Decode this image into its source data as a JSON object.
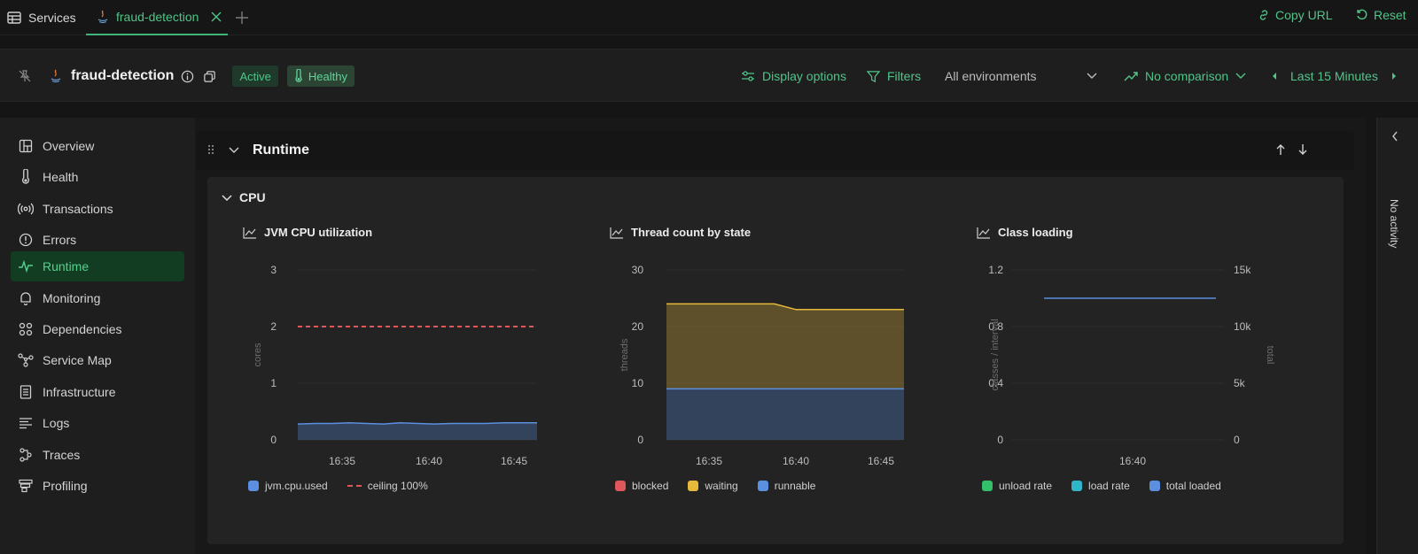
{
  "tabs": {
    "services_label": "Services",
    "active_tab_label": "fraud-detection",
    "add_icon": "plus-icon"
  },
  "top_actions": {
    "copy_url_label": "Copy URL",
    "reset_label": "Reset"
  },
  "header": {
    "service_name": "fraud-detection",
    "status_badge": "Active",
    "health_badge": "Healthy",
    "display_options_label": "Display options",
    "filters_label": "Filters",
    "environment_value": "All environments",
    "comparison_label": "No comparison",
    "time_range_label": "Last 15 Minutes"
  },
  "sidebar": {
    "items": [
      {
        "label": "Overview",
        "icon": "layout-icon"
      },
      {
        "label": "Health",
        "icon": "thermometer-icon"
      },
      {
        "label": "Transactions",
        "icon": "broadcast-icon"
      },
      {
        "label": "Errors",
        "icon": "alert-circle-icon"
      },
      {
        "label": "Runtime",
        "icon": "pulse-icon"
      },
      {
        "label": "Monitoring",
        "icon": "bell-icon"
      },
      {
        "label": "Dependencies",
        "icon": "circles-icon"
      },
      {
        "label": "Service Map",
        "icon": "graph-icon"
      },
      {
        "label": "Infrastructure",
        "icon": "server-icon"
      },
      {
        "label": "Logs",
        "icon": "lines-icon"
      },
      {
        "label": "Traces",
        "icon": "trace-icon"
      },
      {
        "label": "Profiling",
        "icon": "flame-table-icon"
      }
    ],
    "active_item": "Runtime"
  },
  "section": {
    "title": "Runtime",
    "subsection_title": "CPU"
  },
  "right_panel": {
    "label": "No activity"
  },
  "colors": {
    "accent": "#4fc588",
    "blue": "#5b8fe0",
    "red": "#e0575b",
    "yellow": "#e6b93a",
    "teal": "#2fb7c9",
    "green": "#34c06a"
  },
  "chart_data": [
    {
      "type": "area",
      "title": "JVM CPU utilization",
      "ylabel": "cores",
      "ylim": [
        0,
        3
      ],
      "yticks": [
        "3",
        "2",
        "1",
        "0"
      ],
      "xticks": [
        "16:35",
        "16:40",
        "16:45"
      ],
      "series": [
        {
          "name": "jvm.cpu.used",
          "values": [
            0.28,
            0.29,
            0.29,
            0.3,
            0.29,
            0.28,
            0.3,
            0.29,
            0.28,
            0.29,
            0.29,
            0.29,
            0.3,
            0.3,
            0.3
          ]
        },
        {
          "name": "ceiling 100%",
          "values": [
            2,
            2,
            2,
            2,
            2,
            2,
            2,
            2,
            2,
            2,
            2,
            2,
            2,
            2,
            2
          ]
        }
      ]
    },
    {
      "type": "area",
      "title": "Thread count by state",
      "ylabel": "threads",
      "ylim": [
        0,
        30
      ],
      "yticks": [
        "30",
        "20",
        "10",
        "0"
      ],
      "xticks": [
        "16:35",
        "16:40",
        "16:45"
      ],
      "series": [
        {
          "name": "blocked",
          "values": [
            0,
            0,
            0,
            0,
            0,
            0,
            0,
            0,
            0,
            0,
            0,
            0
          ]
        },
        {
          "name": "waiting",
          "values": [
            15,
            15,
            15,
            15,
            15,
            15,
            14,
            14,
            14,
            14,
            14,
            14
          ]
        },
        {
          "name": "runnable",
          "values": [
            9,
            9,
            9,
            9,
            9,
            9,
            9,
            9,
            9,
            9,
            9,
            9
          ]
        }
      ]
    },
    {
      "type": "line",
      "title": "Class loading",
      "ylabel": "classes / interval",
      "y2label": "total",
      "ylim": [
        0,
        1.2
      ],
      "y2lim": [
        0,
        15000
      ],
      "yticks": [
        "1.2",
        "0.8",
        "0.4",
        "0"
      ],
      "y2ticks": [
        "15k",
        "10k",
        "5k",
        "0"
      ],
      "xticks": [
        "16:40"
      ],
      "series": [
        {
          "name": "unload rate",
          "values": []
        },
        {
          "name": "load rate",
          "values": []
        },
        {
          "name": "total loaded",
          "values": [
            12500,
            12500,
            12500,
            12500,
            12500,
            12500
          ]
        }
      ]
    }
  ]
}
